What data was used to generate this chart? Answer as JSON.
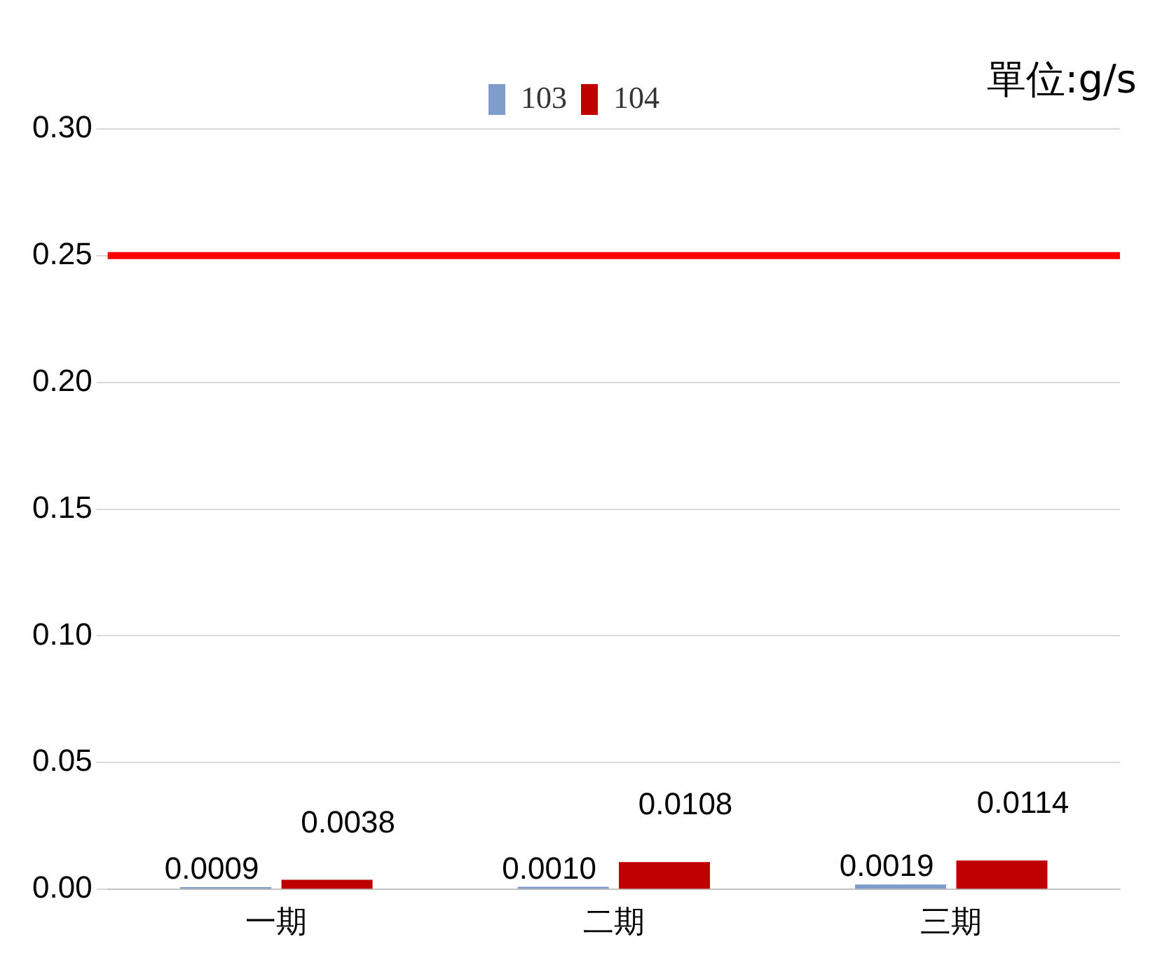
{
  "chart_data": {
    "type": "bar",
    "categories": [
      "一期",
      "二期",
      "三期"
    ],
    "series": [
      {
        "name": "103",
        "color": "#7f9ccb",
        "values": [
          0.0009,
          0.001,
          0.0019
        ],
        "value_labels": [
          "0.0009",
          "0.0010",
          "0.0019"
        ]
      },
      {
        "name": "104",
        "color": "#c00000",
        "values": [
          0.0038,
          0.0108,
          0.0114
        ],
        "value_labels": [
          "0.0038",
          "0.0108",
          "0.0114"
        ]
      }
    ],
    "ylim": [
      0,
      0.3
    ],
    "yticks": [
      {
        "value": 0,
        "label": "0.00"
      },
      {
        "value": 0.05,
        "label": "0.05"
      },
      {
        "value": 0.1,
        "label": "0.10"
      },
      {
        "value": 0.15,
        "label": "0.15"
      },
      {
        "value": 0.2,
        "label": "0.20"
      },
      {
        "value": 0.25,
        "label": "0.25"
      },
      {
        "value": 0.3,
        "label": "0.30"
      }
    ],
    "grid": "y",
    "legend": "top",
    "ref_lines": [
      {
        "axis": "y",
        "value": 0.25,
        "color": "#ff0000"
      }
    ],
    "annotations": [
      "單位:g/s"
    ]
  }
}
